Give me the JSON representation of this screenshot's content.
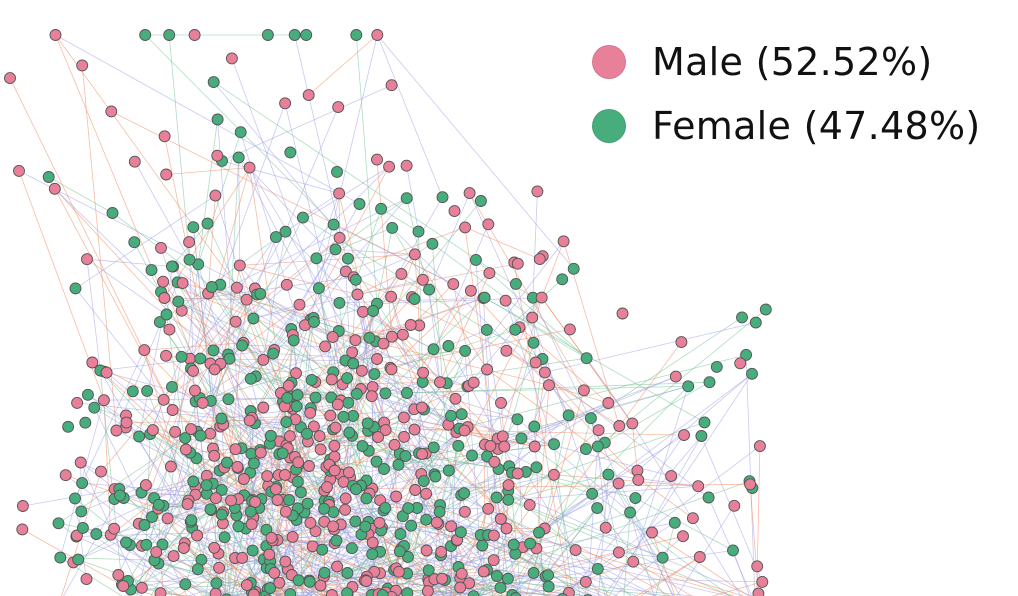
{
  "legend": {
    "items": [
      {
        "label": "Male (52.52%)",
        "color": "#e8809a",
        "group": "male",
        "share": 52.52
      },
      {
        "label": "Female (47.48%)",
        "color": "#48ad7c",
        "group": "female",
        "share": 47.48
      }
    ]
  },
  "graph": {
    "node_stroke": "#555555",
    "edge_colors": {
      "male_male": "#f0855a",
      "female_female": "#6fc08f",
      "mixed": "#9c9ce6"
    }
  }
}
